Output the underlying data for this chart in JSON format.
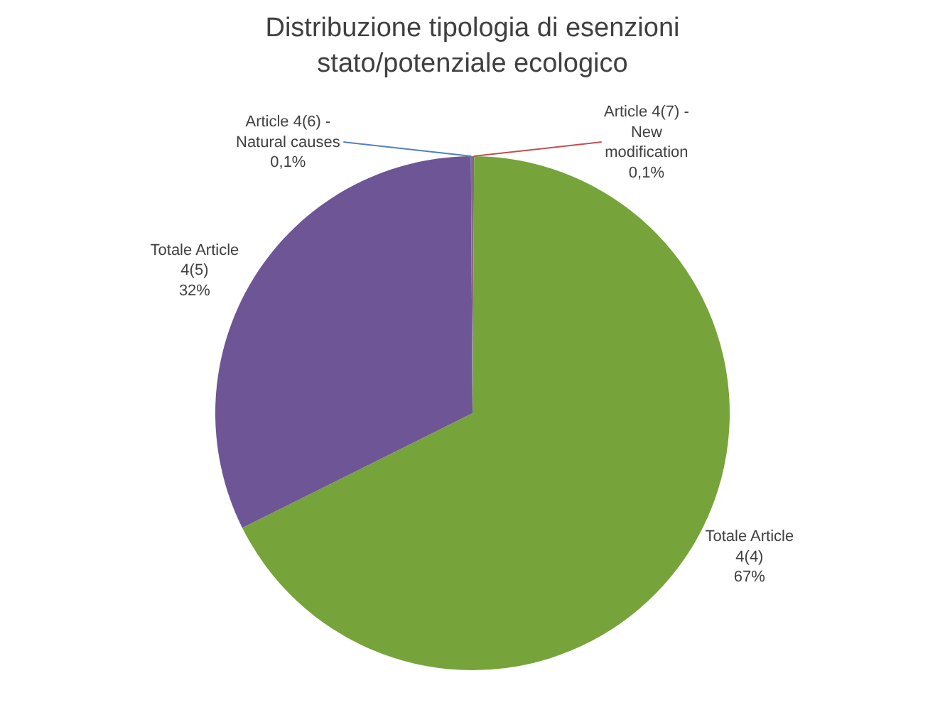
{
  "chart_data": {
    "type": "pie",
    "title": "Distribuzione tipologia di esenzioni stato/potenziale ecologico",
    "categories": [
      "Article 4(7) - New modification",
      "Totale Article 4(4)",
      "Totale Article 4(5)",
      "Article 4(6) - Natural causes"
    ],
    "values": [
      0.1,
      67,
      32,
      0.1
    ],
    "value_labels": [
      "0,1%",
      "67%",
      "32%",
      "0,1%"
    ],
    "colors": [
      "#c0504d",
      "#77a33b",
      "#6e5595",
      "#4f81bd"
    ],
    "legend": false
  }
}
